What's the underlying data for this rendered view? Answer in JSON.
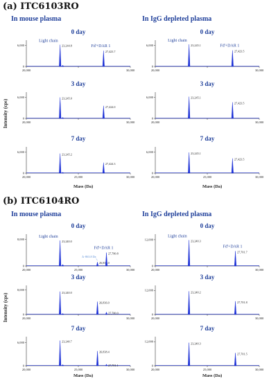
{
  "figure": {
    "section_a_title": "(a) ITC6103RO",
    "section_b_title": "(b) ITC6104RO",
    "col_left_title": "In mouse plasma",
    "col_right_title": "In IgG depleted plasma",
    "y_axis_title": "Intensity (cps)",
    "x_axis_title": "Mass (Da)",
    "colors": {
      "trace": "#1a2fd6",
      "header": "#1f3f9a",
      "annotation": "#5b8fd6"
    }
  },
  "chart_data": [
    {
      "id": "a-mouse-0",
      "type": "line",
      "panel_title": "0 day",
      "x_ticks": [
        "20,000",
        "",
        "30,000"
      ],
      "y_tick": "6,000",
      "ylim": [
        0,
        7500
      ],
      "xlim": [
        20000,
        30000
      ],
      "peaks": [
        {
          "x": 23244.8,
          "y": 6200,
          "label": "23,244.8"
        },
        {
          "x": 23500,
          "y": 350,
          "label": ""
        },
        {
          "x": 27423.7,
          "y": 4500,
          "label": "27,423.7"
        }
      ],
      "annotations": [
        {
          "text": "Light chain",
          "target": 0
        },
        {
          "text": "Fd'+DAR 1",
          "target": 2
        }
      ]
    },
    {
      "id": "a-mouse-3",
      "type": "line",
      "panel_title": "3 day",
      "x_ticks": [
        "20,000",
        "",
        "30,000"
      ],
      "y_tick": "6,000",
      "ylim": [
        0,
        7500
      ],
      "xlim": [
        20000,
        30000
      ],
      "peaks": [
        {
          "x": 23245.0,
          "y": 6000,
          "label": "23,245.0"
        },
        {
          "x": 23500,
          "y": 300,
          "label": ""
        },
        {
          "x": 27424.0,
          "y": 3600,
          "label": "27,424.0"
        }
      ],
      "annotations": []
    },
    {
      "id": "a-mouse-7",
      "type": "line",
      "panel_title": "7 day",
      "x_ticks": [
        "20,000",
        "25,000",
        "30,000"
      ],
      "y_tick": "6,000",
      "ylim": [
        0,
        7500
      ],
      "xlim": [
        20000,
        30000
      ],
      "peaks": [
        {
          "x": 23245.2,
          "y": 5600,
          "label": "23,245.2"
        },
        {
          "x": 23500,
          "y": 250,
          "label": ""
        },
        {
          "x": 27424.3,
          "y": 3000,
          "label": "27,424.3"
        }
      ],
      "annotations": []
    },
    {
      "id": "a-igg-0",
      "type": "line",
      "panel_title": "0 day",
      "x_ticks": [
        "20,000",
        "",
        "30,000"
      ],
      "y_tick": "6,000",
      "ylim": [
        0,
        7500
      ],
      "xlim": [
        20000,
        30000
      ],
      "peaks": [
        {
          "x": 23245.1,
          "y": 6300,
          "label": "23,245.1"
        },
        {
          "x": 27423.5,
          "y": 4600,
          "label": "27,423.5"
        }
      ],
      "annotations": [
        {
          "text": "Light chain",
          "target": 0
        },
        {
          "text": "Fd'+DAR 1",
          "target": 1
        }
      ]
    },
    {
      "id": "a-igg-3",
      "type": "line",
      "panel_title": "3 day",
      "x_ticks": [
        "20,000",
        "",
        "30,000"
      ],
      "y_tick": "6,000",
      "ylim": [
        0,
        7500
      ],
      "xlim": [
        20000,
        30000
      ],
      "peaks": [
        {
          "x": 23245.1,
          "y": 6200,
          "label": "23,245.1"
        },
        {
          "x": 27423.5,
          "y": 4600,
          "label": "27,423.5"
        }
      ],
      "annotations": []
    },
    {
      "id": "a-igg-7",
      "type": "line",
      "panel_title": "7 day",
      "x_ticks": [
        "20,000",
        "25,000",
        "30,000"
      ],
      "y_tick": "6,000",
      "ylim": [
        0,
        7500
      ],
      "xlim": [
        20000,
        30000
      ],
      "peaks": [
        {
          "x": 23245.1,
          "y": 5900,
          "label": "23,245.1"
        },
        {
          "x": 27423.5,
          "y": 4200,
          "label": "27,423.5"
        }
      ],
      "annotations": []
    },
    {
      "id": "b-mouse-0",
      "type": "line",
      "panel_title": "0 day",
      "x_ticks": [
        "20,000",
        "25,000",
        "30,000"
      ],
      "y_tick": "8,000",
      "ylim": [
        0,
        9500
      ],
      "xlim": [
        20000,
        30000
      ],
      "peaks": [
        {
          "x": 23240.0,
          "y": 7600,
          "label": "23,240.0"
        },
        {
          "x": 23500,
          "y": 450,
          "label": ""
        },
        {
          "x": 26837.0,
          "y": 1200,
          "label": "26,837.0"
        },
        {
          "x": 27700.8,
          "y": 4000,
          "label": "27,700.8"
        }
      ],
      "annotations": [
        {
          "text": "Light chain",
          "target": 0
        },
        {
          "text": "Fd'+DAR 1",
          "target": 3
        },
        {
          "text": "Δ -863.8 Da",
          "target": 2
        }
      ]
    },
    {
      "id": "b-mouse-3",
      "type": "line",
      "panel_title": "3 day",
      "x_ticks": [
        "20,000",
        "",
        "30,000"
      ],
      "y_tick": "8,000",
      "ylim": [
        0,
        9500
      ],
      "xlim": [
        20000,
        30000
      ],
      "peaks": [
        {
          "x": 23240.0,
          "y": 7500,
          "label": "23,240.0"
        },
        {
          "x": 23500,
          "y": 350,
          "label": ""
        },
        {
          "x": 26836.0,
          "y": 4200,
          "label": "26,836.0"
        },
        {
          "x": 27700.0,
          "y": 800,
          "label": "27,700.0"
        }
      ],
      "annotations": []
    },
    {
      "id": "b-mouse-7",
      "type": "line",
      "panel_title": "7 day",
      "x_ticks": [
        "20,000",
        "25,000",
        "30,000"
      ],
      "y_tick": "6,000",
      "ylim": [
        0,
        7500
      ],
      "xlim": [
        20000,
        30000
      ],
      "peaks": [
        {
          "x": 23240.7,
          "y": 6500,
          "label": "23,240.7"
        },
        {
          "x": 23500,
          "y": 300,
          "label": ""
        },
        {
          "x": 26838.4,
          "y": 3800,
          "label": "26,838.4"
        },
        {
          "x": 27701.1,
          "y": 400,
          "label": "27,701.1"
        }
      ],
      "annotations": []
    },
    {
      "id": "b-igg-0",
      "type": "line",
      "panel_title": "0 day",
      "x_ticks": [
        "20,000",
        "",
        "30,000"
      ],
      "y_tick": "12,000",
      "ylim": [
        0,
        14500
      ],
      "xlim": [
        20000,
        30000
      ],
      "peaks": [
        {
          "x": 23240.3,
          "y": 11800,
          "label": "23,240.3"
        },
        {
          "x": 27701.7,
          "y": 6800,
          "label": "27,701.7"
        }
      ],
      "annotations": [
        {
          "text": "Light chain",
          "target": 0
        },
        {
          "text": "Fd'+DAR 1",
          "target": 1
        }
      ]
    },
    {
      "id": "b-igg-3",
      "type": "line",
      "panel_title": "3 day",
      "x_ticks": [
        "20,000",
        "",
        "30,000"
      ],
      "y_tick": "12,000",
      "ylim": [
        0,
        14500
      ],
      "xlim": [
        20000,
        30000
      ],
      "peaks": [
        {
          "x": 23240.2,
          "y": 11600,
          "label": "23,240.2"
        },
        {
          "x": 27701.8,
          "y": 6600,
          "label": "27,701.8"
        }
      ],
      "annotations": []
    },
    {
      "id": "b-igg-7",
      "type": "line",
      "panel_title": "7 day",
      "x_ticks": [
        "20,000",
        "25,000",
        "30,000"
      ],
      "y_tick": "12,000",
      "ylim": [
        0,
        14500
      ],
      "xlim": [
        20000,
        30000
      ],
      "peaks": [
        {
          "x": 23240.3,
          "y": 11500,
          "label": "23,240.3"
        },
        {
          "x": 27701.5,
          "y": 6400,
          "label": "27,701.5"
        }
      ],
      "annotations": []
    }
  ]
}
